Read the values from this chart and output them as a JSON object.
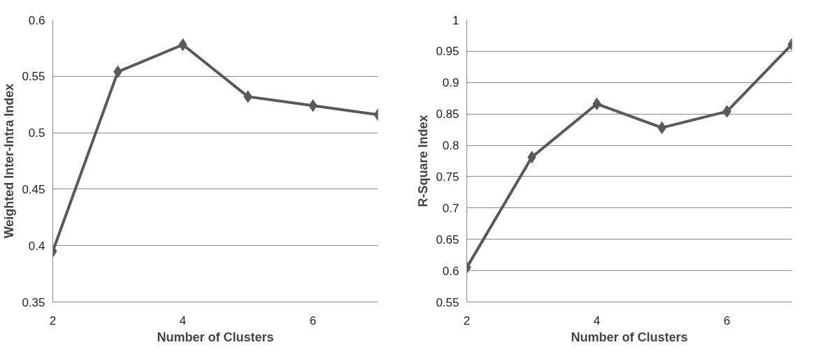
{
  "chart_data": [
    {
      "type": "line",
      "xlabel": "Number of Clusters",
      "ylabel": "Weighted Inter-Intra Index",
      "x": [
        2,
        3,
        4,
        5,
        6,
        7
      ],
      "series": [
        {
          "color": "#595959",
          "values": [
            0.395,
            0.554,
            0.578,
            0.532,
            0.524,
            0.516
          ]
        }
      ],
      "xlim": [
        2,
        7
      ],
      "xticks": [
        2,
        4,
        6
      ],
      "ylim": [
        0.35,
        0.6
      ],
      "yticks": [
        0.35,
        0.4,
        0.45,
        0.5,
        0.55,
        0.6
      ],
      "grid": "y",
      "marker": "diamond"
    },
    {
      "type": "line",
      "xlabel": "Number of Clusters",
      "ylabel": "R-Square Index",
      "x": [
        2,
        3,
        4,
        5,
        6,
        7
      ],
      "series": [
        {
          "color": "#595959",
          "values": [
            0.605,
            0.781,
            0.866,
            0.828,
            0.854,
            0.961
          ]
        }
      ],
      "xlim": [
        2,
        7
      ],
      "xticks": [
        2,
        4,
        6
      ],
      "ylim": [
        0.55,
        1
      ],
      "yticks": [
        0.55,
        0.6,
        0.65,
        0.7,
        0.75,
        0.8,
        0.85,
        0.9,
        0.95,
        1
      ],
      "grid": "y",
      "marker": "diamond"
    }
  ]
}
